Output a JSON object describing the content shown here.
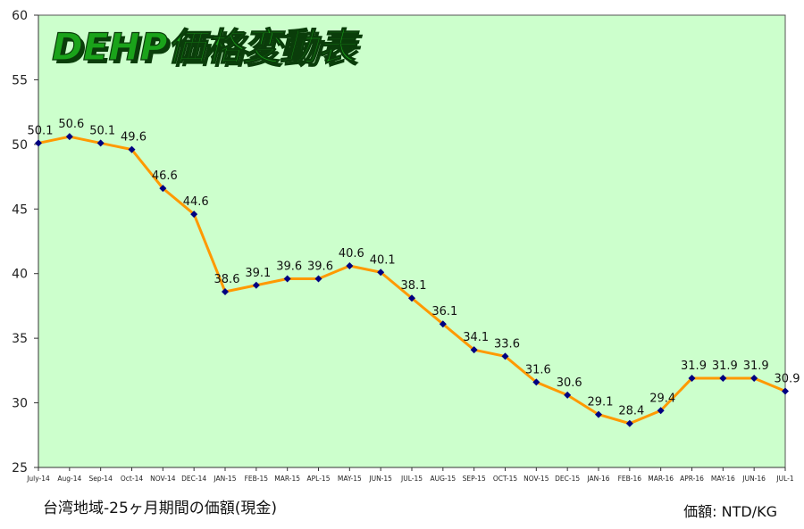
{
  "chart_data": {
    "type": "line",
    "title": "DEHP価格変動表",
    "categories": [
      "July-14",
      "Aug-14",
      "Sep-14",
      "Oct-14",
      "NOV-14",
      "DEC-14",
      "JAN-15",
      "FEB-15",
      "MAR-15",
      "APL-15",
      "MAY-15",
      "JUN-15",
      "JUL-15",
      "AUG-15",
      "SEP-15",
      "OCT-15",
      "NOV-15",
      "DEC-15",
      "JAN-16",
      "FEB-16",
      "MAR-16",
      "APR-16",
      "MAY-16",
      "JUN-16",
      "JUL-1"
    ],
    "series": [
      {
        "values": [
          50.1,
          50.6,
          50.1,
          49.6,
          46.6,
          44.6,
          38.6,
          39.1,
          39.6,
          39.6,
          40.6,
          40.1,
          38.1,
          36.1,
          34.1,
          33.6,
          31.6,
          30.6,
          29.1,
          28.4,
          29.4,
          31.9,
          31.9,
          31.9,
          30.9
        ]
      }
    ],
    "data_labels": [
      "50.1",
      "50.6",
      "50.1",
      "49.6",
      "46.6",
      "44.6",
      "38.6",
      "39.1",
      "39.6",
      "39.6",
      "40.6",
      "40.1",
      "38.1",
      "36.1",
      "34.1",
      "33.6",
      "31.6",
      "30.6",
      "29.1",
      "28.4",
      "29.4",
      "31.9",
      "31.9",
      "31.9",
      "30.9"
    ],
    "ylim": [
      25,
      60
    ],
    "yticks": [
      "25",
      "30",
      "35",
      "40",
      "45",
      "50",
      "55",
      "60"
    ],
    "grid": false,
    "colors": {
      "plot_bg": "#ccffcc",
      "line": "#ff9900",
      "marker": "#000080",
      "title_fill": "#1aa31a",
      "title_shadow": "#0a3d0a"
    }
  },
  "footer": {
    "left": "台湾地域-25ヶ月期間の価額(現金)",
    "right": "価額: NTD/KG"
  }
}
